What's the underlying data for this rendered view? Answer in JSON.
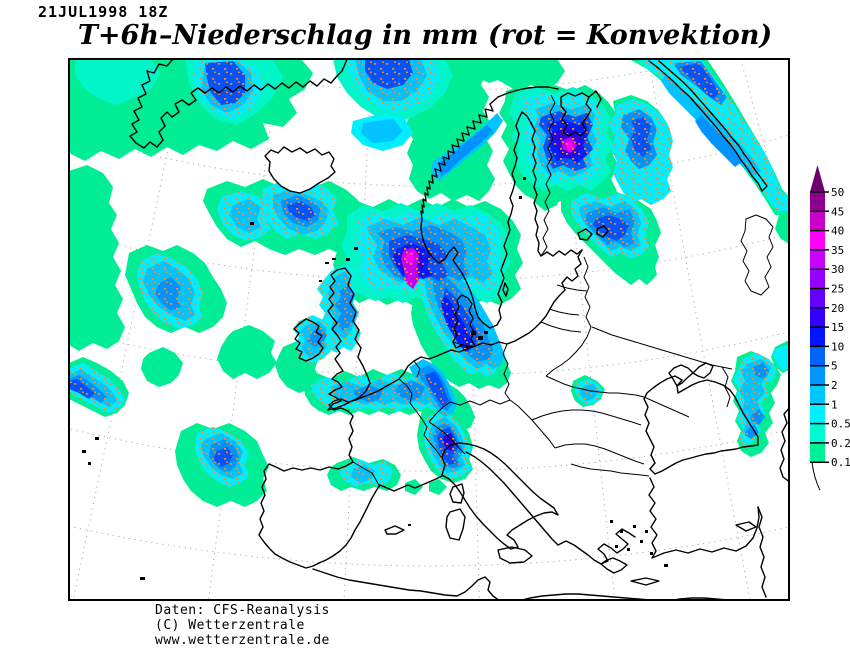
{
  "header": {
    "datetime": "21JUL1998 18Z",
    "title": "T+6h–Niederschlag in mm (rot = Konvektion)"
  },
  "legend": {
    "values": [
      "50",
      "45",
      "40",
      "35",
      "30",
      "25",
      "20",
      "15",
      "10",
      "5",
      "2",
      "1",
      "0.5",
      "0.2",
      "0.1"
    ],
    "segment_colors_top_to_bottom": [
      "#900090",
      "#C800C8",
      "#FF00FF",
      "#C800FF",
      "#9600FF",
      "#6400FF",
      "#3200FF",
      "#0014FF",
      "#0064FF",
      "#0096FF",
      "#00C8FF",
      "#00F0FF",
      "#00FAD2",
      "#00F096"
    ],
    "arrow_color": "#6E006E"
  },
  "map": {
    "precip_levels_mm": [
      0.1,
      0.2,
      0.5,
      1,
      2,
      5,
      10,
      15,
      20,
      25,
      30,
      35,
      40,
      45,
      50
    ],
    "convection_dot_color": "#FF8A1E",
    "coast_color": "#000000",
    "graticule_color": "#ABABAB",
    "background_color": "#FFFFFF"
  },
  "footer": {
    "lines": [
      "Daten: CFS-Reanalysis",
      "(C) Wetterzentrale",
      "www.wetterzentrale.de"
    ]
  }
}
